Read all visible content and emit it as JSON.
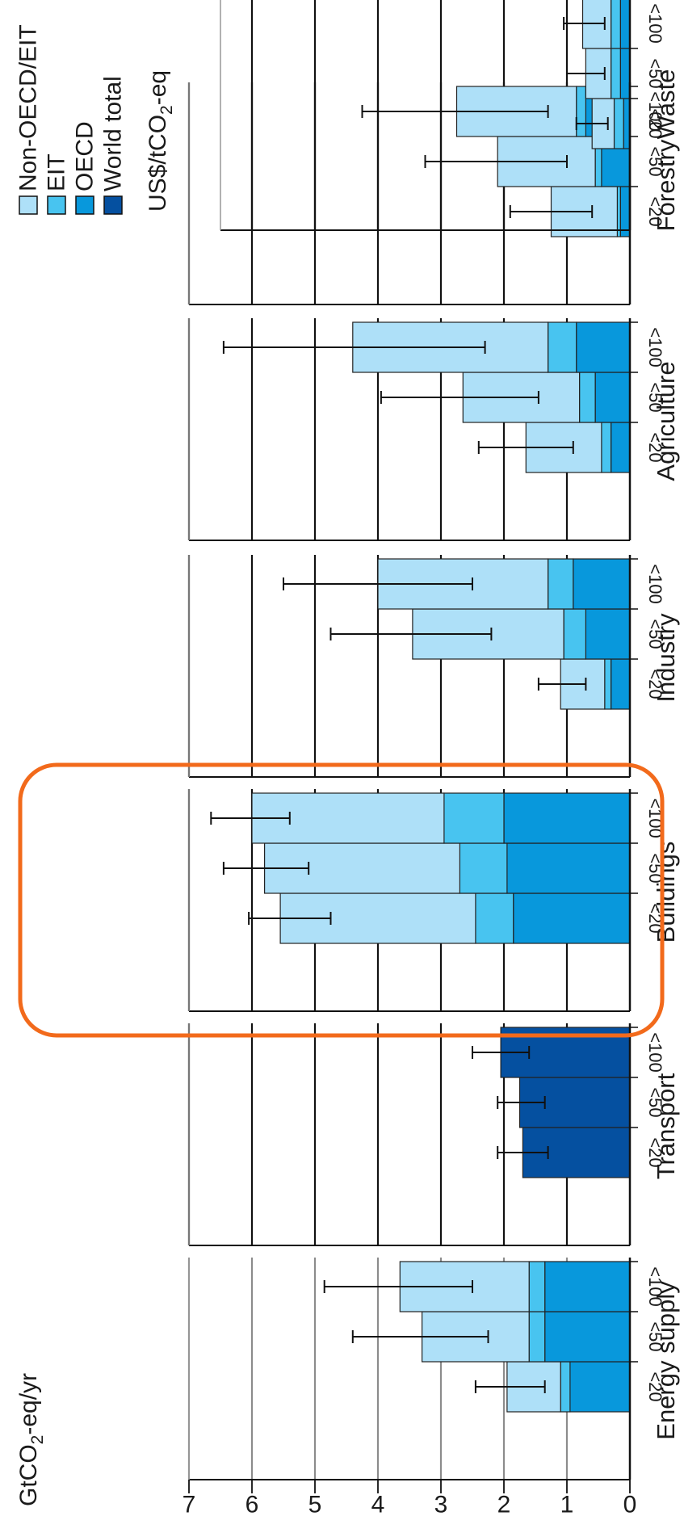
{
  "ylabel_text": "GtCO",
  "ylabel_sub": "2",
  "ylabel_suffix": "-eq/yr",
  "units_text": "US$/tCO",
  "units_sub": "2",
  "units_suffix": "-eq",
  "colors": {
    "non_oecd": "#aee0f8",
    "eit": "#48c4f0",
    "oecd": "#0898dc",
    "world": "#0550a0",
    "highlight": "#f26a1b"
  },
  "legend": [
    {
      "label": "Non-OECD/EIT",
      "color": "#aee0f8"
    },
    {
      "label": "EIT",
      "color": "#48c4f0"
    },
    {
      "label": "OECD",
      "color": "#0898dc"
    },
    {
      "label": "World total",
      "color": "#0550a0"
    }
  ],
  "chart_data": {
    "type": "bar",
    "stacked": true,
    "ylim": [
      0,
      7
    ],
    "yticks": [
      0,
      1,
      2,
      3,
      4,
      5,
      6,
      7
    ],
    "grid": true,
    "price_levels": [
      "<20",
      "<50",
      "<100"
    ],
    "highlighted_sector": "Buildings",
    "sectors": [
      {
        "name": "Energy supply",
        "stack": "regional",
        "bars": [
          {
            "price": "<20",
            "oecd": 0.95,
            "eit": 0.15,
            "non_oecd": 0.85,
            "total": 1.95,
            "err": [
              1.35,
              2.45
            ]
          },
          {
            "price": "<50",
            "oecd": 1.35,
            "eit": 0.25,
            "non_oecd": 1.7,
            "total": 3.3,
            "err": [
              2.25,
              4.4
            ]
          },
          {
            "price": "<100",
            "oecd": 1.35,
            "eit": 0.25,
            "non_oecd": 2.05,
            "total": 3.65,
            "err": [
              2.5,
              4.85
            ]
          }
        ]
      },
      {
        "name": "Transport",
        "stack": "world",
        "bars": [
          {
            "price": "<20",
            "world": 1.7,
            "total": 1.7,
            "err": [
              1.3,
              2.1
            ]
          },
          {
            "price": "<50",
            "world": 1.75,
            "total": 1.75,
            "err": [
              1.35,
              2.1
            ]
          },
          {
            "price": "<100",
            "world": 2.05,
            "total": 2.05,
            "err": [
              1.6,
              2.5
            ]
          }
        ]
      },
      {
        "name": "Buildings",
        "stack": "regional",
        "bars": [
          {
            "price": "<20",
            "oecd": 1.85,
            "eit": 0.6,
            "non_oecd": 3.1,
            "total": 5.55,
            "err": [
              4.75,
              6.05
            ]
          },
          {
            "price": "<50",
            "oecd": 1.95,
            "eit": 0.75,
            "non_oecd": 3.1,
            "total": 5.8,
            "err": [
              5.1,
              6.45
            ]
          },
          {
            "price": "<100",
            "oecd": 2.0,
            "eit": 0.95,
            "non_oecd": 3.05,
            "total": 6.0,
            "err": [
              5.4,
              6.65
            ]
          }
        ]
      },
      {
        "name": "Industry",
        "stack": "regional",
        "bars": [
          {
            "price": "<20",
            "oecd": 0.3,
            "eit": 0.1,
            "non_oecd": 0.7,
            "total": 1.1,
            "err": [
              0.7,
              1.45
            ]
          },
          {
            "price": "<50",
            "oecd": 0.7,
            "eit": 0.35,
            "non_oecd": 2.4,
            "total": 3.45,
            "err": [
              2.2,
              4.75
            ]
          },
          {
            "price": "<100",
            "oecd": 0.9,
            "eit": 0.4,
            "non_oecd": 2.7,
            "total": 4.0,
            "err": [
              2.5,
              5.5
            ]
          }
        ]
      },
      {
        "name": "Agriculture",
        "stack": "regional",
        "bars": [
          {
            "price": "<20",
            "oecd": 0.3,
            "eit": 0.15,
            "non_oecd": 1.2,
            "total": 1.65,
            "err": [
              0.9,
              2.4
            ]
          },
          {
            "price": "<50",
            "oecd": 0.55,
            "eit": 0.25,
            "non_oecd": 1.85,
            "total": 2.65,
            "err": [
              1.45,
              3.95
            ]
          },
          {
            "price": "<100",
            "oecd": 0.85,
            "eit": 0.45,
            "non_oecd": 3.1,
            "total": 4.4,
            "err": [
              2.3,
              6.45
            ]
          }
        ]
      },
      {
        "name": "Forestry",
        "stack": "regional",
        "bars": [
          {
            "price": "<20",
            "oecd": 0.15,
            "eit": 0.05,
            "non_oecd": 1.05,
            "total": 1.25,
            "err": [
              0.6,
              1.9
            ]
          },
          {
            "price": "<50",
            "oecd": 0.45,
            "eit": 0.1,
            "non_oecd": 1.55,
            "total": 2.1,
            "err": [
              1.0,
              3.25
            ]
          },
          {
            "price": "<100",
            "oecd": 0.7,
            "eit": 0.15,
            "non_oecd": 1.9,
            "total": 2.75,
            "err": [
              1.3,
              4.25
            ]
          }
        ]
      },
      {
        "name": "Waste",
        "stack": "regional",
        "bars": [
          {
            "price": "<20",
            "oecd": 0.1,
            "eit": 0.15,
            "non_oecd": 0.35,
            "total": 0.6,
            "err": [
              0.35,
              0.85
            ]
          },
          {
            "price": "<50",
            "oecd": 0.15,
            "eit": 0.15,
            "non_oecd": 0.4,
            "total": 0.7,
            "err": [
              0.4,
              1.0
            ]
          },
          {
            "price": "<100",
            "oecd": 0.15,
            "eit": 0.15,
            "non_oecd": 0.45,
            "total": 0.75,
            "err": [
              0.4,
              1.05
            ]
          }
        ]
      }
    ]
  }
}
